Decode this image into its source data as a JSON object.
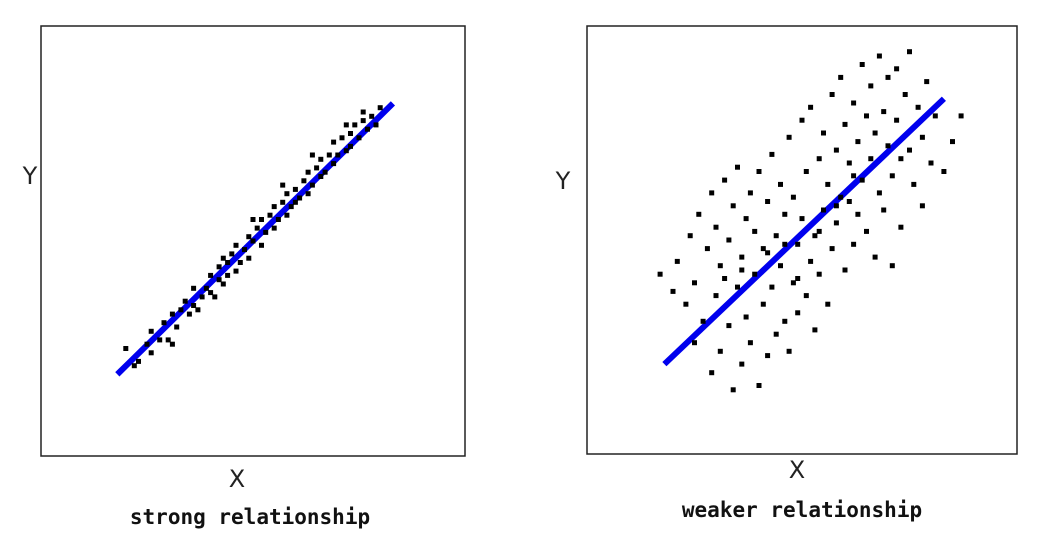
{
  "colors": {
    "background": "#ffffff",
    "frame": "#222222",
    "points": "#000000",
    "fit_line": "#0000ee"
  },
  "chart_data": [
    {
      "type": "scatter",
      "title": "",
      "xlabel": "X",
      "ylabel": "Y",
      "caption": "strong relationship",
      "xlim": [
        0,
        10
      ],
      "ylim": [
        0,
        10
      ],
      "grid": false,
      "legend": "none",
      "fit_line": {
        "x": [
          1.8,
          8.3
        ],
        "y": [
          1.9,
          8.2
        ]
      },
      "points": [
        [
          2.0,
          2.5
        ],
        [
          2.2,
          2.1
        ],
        [
          2.3,
          2.2
        ],
        [
          2.5,
          2.6
        ],
        [
          2.6,
          2.4
        ],
        [
          2.6,
          2.9
        ],
        [
          2.8,
          2.7
        ],
        [
          2.9,
          3.1
        ],
        [
          3.0,
          2.7
        ],
        [
          3.1,
          2.6
        ],
        [
          3.1,
          3.3
        ],
        [
          3.2,
          3.0
        ],
        [
          3.3,
          3.4
        ],
        [
          3.4,
          3.6
        ],
        [
          3.5,
          3.3
        ],
        [
          3.6,
          3.5
        ],
        [
          3.6,
          3.9
        ],
        [
          3.7,
          3.4
        ],
        [
          3.8,
          3.7
        ],
        [
          3.9,
          3.9
        ],
        [
          4.0,
          3.8
        ],
        [
          4.0,
          4.2
        ],
        [
          4.1,
          3.7
        ],
        [
          4.2,
          4.1
        ],
        [
          4.2,
          4.4
        ],
        [
          4.3,
          4.0
        ],
        [
          4.4,
          4.5
        ],
        [
          4.4,
          4.2
        ],
        [
          4.5,
          4.7
        ],
        [
          4.6,
          4.3
        ],
        [
          4.6,
          4.9
        ],
        [
          4.7,
          4.5
        ],
        [
          4.8,
          4.8
        ],
        [
          4.9,
          5.1
        ],
        [
          4.9,
          4.6
        ],
        [
          5.0,
          5.0
        ],
        [
          5.1,
          5.3
        ],
        [
          5.2,
          4.9
        ],
        [
          5.2,
          5.5
        ],
        [
          5.3,
          5.2
        ],
        [
          5.4,
          5.6
        ],
        [
          5.5,
          5.3
        ],
        [
          5.5,
          5.8
        ],
        [
          5.6,
          5.5
        ],
        [
          5.7,
          5.9
        ],
        [
          5.8,
          5.6
        ],
        [
          5.8,
          6.1
        ],
        [
          5.9,
          5.8
        ],
        [
          6.0,
          6.2
        ],
        [
          6.0,
          5.9
        ],
        [
          6.1,
          6.0
        ],
        [
          6.2,
          6.4
        ],
        [
          6.3,
          6.1
        ],
        [
          6.3,
          6.6
        ],
        [
          6.4,
          6.3
        ],
        [
          6.5,
          6.7
        ],
        [
          6.6,
          6.5
        ],
        [
          6.6,
          6.9
        ],
        [
          6.7,
          6.6
        ],
        [
          6.8,
          7.0
        ],
        [
          6.9,
          6.8
        ],
        [
          6.9,
          7.3
        ],
        [
          7.0,
          7.0
        ],
        [
          7.1,
          7.4
        ],
        [
          7.2,
          7.1
        ],
        [
          7.3,
          7.5
        ],
        [
          7.3,
          7.2
        ],
        [
          7.4,
          7.7
        ],
        [
          7.5,
          7.4
        ],
        [
          7.6,
          7.8
        ],
        [
          7.7,
          7.6
        ],
        [
          7.8,
          7.9
        ],
        [
          7.9,
          7.7
        ],
        [
          8.0,
          8.1
        ],
        [
          7.6,
          8.0
        ],
        [
          7.2,
          7.7
        ],
        [
          6.4,
          7.0
        ],
        [
          5.7,
          6.3
        ],
        [
          5.0,
          5.5
        ],
        [
          4.3,
          4.6
        ]
      ]
    },
    {
      "type": "scatter",
      "title": "",
      "xlabel": "X",
      "ylabel": "Y",
      "caption": "weaker relationship",
      "xlim": [
        0,
        10
      ],
      "ylim": [
        0,
        10
      ],
      "grid": false,
      "legend": "none",
      "fit_line": {
        "x": [
          1.8,
          8.3
        ],
        "y": [
          2.1,
          8.3
        ]
      },
      "points": [
        [
          1.7,
          4.2
        ],
        [
          2.0,
          3.8
        ],
        [
          2.1,
          4.5
        ],
        [
          2.3,
          3.5
        ],
        [
          2.4,
          5.1
        ],
        [
          2.5,
          2.6
        ],
        [
          2.5,
          4.0
        ],
        [
          2.6,
          5.6
        ],
        [
          2.7,
          3.1
        ],
        [
          2.8,
          4.8
        ],
        [
          2.9,
          1.9
        ],
        [
          2.9,
          6.1
        ],
        [
          3.0,
          3.7
        ],
        [
          3.0,
          5.3
        ],
        [
          3.1,
          2.4
        ],
        [
          3.1,
          4.4
        ],
        [
          3.2,
          6.4
        ],
        [
          3.3,
          3.0
        ],
        [
          3.3,
          5.0
        ],
        [
          3.4,
          1.5
        ],
        [
          3.4,
          5.8
        ],
        [
          3.5,
          3.9
        ],
        [
          3.5,
          6.7
        ],
        [
          3.6,
          2.1
        ],
        [
          3.6,
          4.6
        ],
        [
          3.7,
          5.5
        ],
        [
          3.7,
          3.2
        ],
        [
          3.8,
          6.1
        ],
        [
          3.8,
          2.6
        ],
        [
          3.9,
          4.2
        ],
        [
          3.9,
          5.2
        ],
        [
          4.0,
          1.6
        ],
        [
          4.0,
          6.6
        ],
        [
          4.1,
          3.5
        ],
        [
          4.1,
          4.8
        ],
        [
          4.2,
          2.3
        ],
        [
          4.2,
          5.9
        ],
        [
          4.3,
          3.9
        ],
        [
          4.3,
          7.0
        ],
        [
          4.4,
          2.8
        ],
        [
          4.4,
          5.1
        ],
        [
          4.5,
          4.4
        ],
        [
          4.5,
          6.3
        ],
        [
          4.6,
          3.1
        ],
        [
          4.6,
          5.6
        ],
        [
          4.7,
          2.4
        ],
        [
          4.7,
          7.4
        ],
        [
          4.8,
          4.0
        ],
        [
          4.8,
          6.0
        ],
        [
          4.9,
          3.3
        ],
        [
          4.9,
          4.9
        ],
        [
          5.0,
          7.8
        ],
        [
          5.0,
          5.5
        ],
        [
          5.1,
          3.7
        ],
        [
          5.1,
          6.6
        ],
        [
          5.2,
          4.5
        ],
        [
          5.2,
          8.1
        ],
        [
          5.3,
          5.1
        ],
        [
          5.3,
          2.9
        ],
        [
          5.4,
          6.9
        ],
        [
          5.4,
          4.2
        ],
        [
          5.5,
          7.5
        ],
        [
          5.5,
          5.7
        ],
        [
          5.6,
          3.5
        ],
        [
          5.6,
          6.3
        ],
        [
          5.7,
          8.4
        ],
        [
          5.7,
          4.8
        ],
        [
          5.8,
          7.1
        ],
        [
          5.8,
          5.4
        ],
        [
          5.9,
          6.0
        ],
        [
          5.9,
          8.8
        ],
        [
          6.0,
          4.3
        ],
        [
          6.0,
          7.7
        ],
        [
          6.1,
          5.9
        ],
        [
          6.1,
          6.8
        ],
        [
          6.2,
          8.2
        ],
        [
          6.2,
          4.9
        ],
        [
          6.3,
          7.3
        ],
        [
          6.3,
          5.6
        ],
        [
          6.4,
          9.1
        ],
        [
          6.4,
          6.4
        ],
        [
          6.5,
          7.9
        ],
        [
          6.5,
          5.2
        ],
        [
          6.6,
          8.6
        ],
        [
          6.6,
          6.9
        ],
        [
          6.7,
          4.6
        ],
        [
          6.7,
          7.5
        ],
        [
          6.8,
          9.3
        ],
        [
          6.8,
          6.1
        ],
        [
          6.9,
          8.0
        ],
        [
          6.9,
          5.7
        ],
        [
          7.0,
          7.2
        ],
        [
          7.0,
          8.8
        ],
        [
          7.1,
          6.5
        ],
        [
          7.1,
          4.4
        ],
        [
          7.2,
          7.8
        ],
        [
          7.2,
          9.0
        ],
        [
          7.3,
          6.9
        ],
        [
          7.3,
          5.3
        ],
        [
          7.4,
          8.4
        ],
        [
          7.5,
          7.1
        ],
        [
          7.5,
          9.4
        ],
        [
          7.6,
          6.3
        ],
        [
          7.7,
          8.1
        ],
        [
          7.8,
          7.4
        ],
        [
          7.8,
          5.8
        ],
        [
          7.9,
          8.7
        ],
        [
          8.0,
          6.8
        ],
        [
          8.1,
          7.9
        ],
        [
          8.3,
          6.6
        ],
        [
          8.5,
          7.3
        ],
        [
          8.7,
          7.9
        ],
        [
          3.2,
          4.1
        ],
        [
          3.6,
          4.3
        ],
        [
          4.2,
          4.7
        ],
        [
          4.6,
          4.9
        ],
        [
          5.4,
          5.2
        ],
        [
          5.8,
          5.8
        ],
        [
          6.2,
          6.5
        ],
        [
          4.9,
          4.1
        ]
      ]
    }
  ]
}
